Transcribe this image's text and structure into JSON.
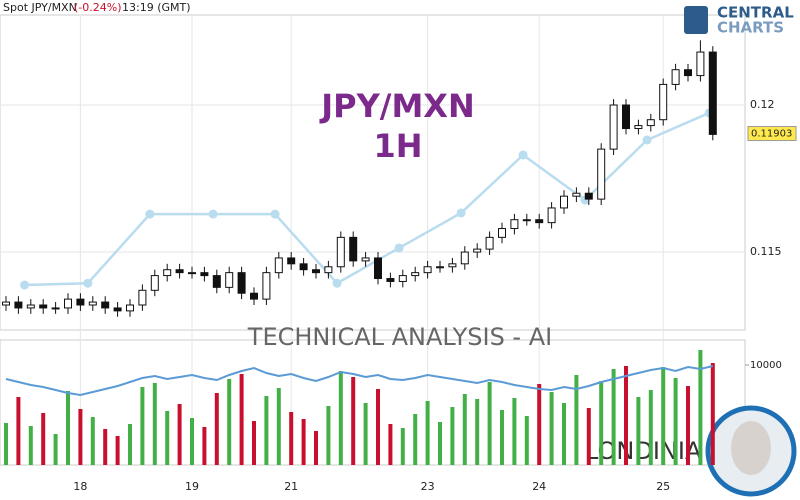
{
  "header": {
    "symbol": "Spot JPY/MXN",
    "change": "(-0.24%)",
    "time": "13:19 (GMT)"
  },
  "logo": {
    "line1": "CENTRAL",
    "line2": "CHARTS"
  },
  "footer": {
    "brand": "LONDINIA"
  },
  "chart_data": [
    {
      "type": "candlestick",
      "title": "JPY/MXN",
      "subtitle": "1H",
      "open": [
        0.1132,
        0.1133,
        0.1131,
        0.1132,
        0.1131,
        0.1131,
        0.1134,
        0.1132,
        0.1133,
        0.1131,
        0.113,
        0.1132,
        0.1137,
        0.1142,
        0.1144,
        0.1143,
        0.1143,
        0.1142,
        0.1138,
        0.1143,
        0.1136,
        0.1134,
        0.1143,
        0.1148,
        0.1146,
        0.1144,
        0.1143,
        0.1145,
        0.1155,
        0.1147,
        0.1148,
        0.1141,
        0.114,
        0.1142,
        0.1143,
        0.1145,
        0.1145,
        0.1146,
        0.115,
        0.1151,
        0.1155,
        0.1158,
        0.1161,
        0.1161,
        0.116,
        0.1165,
        0.1169,
        0.117,
        0.1168,
        0.1185,
        0.12,
        0.1192,
        0.1193,
        0.1195,
        0.1207,
        0.1212,
        0.121,
        0.1218
      ],
      "high": [
        0.1135,
        0.1135,
        0.1134,
        0.1134,
        0.1133,
        0.1136,
        0.1136,
        0.1135,
        0.1135,
        0.1133,
        0.1134,
        0.1139,
        0.1144,
        0.1146,
        0.1146,
        0.1145,
        0.1145,
        0.1144,
        0.1145,
        0.1145,
        0.1138,
        0.1145,
        0.115,
        0.115,
        0.1148,
        0.1146,
        0.1147,
        0.1157,
        0.1157,
        0.115,
        0.115,
        0.1143,
        0.1144,
        0.1145,
        0.1147,
        0.1147,
        0.1148,
        0.1152,
        0.1153,
        0.1157,
        0.116,
        0.1163,
        0.1163,
        0.1163,
        0.1167,
        0.1171,
        0.1172,
        0.1172,
        0.1187,
        0.1202,
        0.1202,
        0.1195,
        0.1197,
        0.1209,
        0.1214,
        0.1214,
        0.1222,
        0.122
      ],
      "low": [
        0.113,
        0.1129,
        0.1129,
        0.1129,
        0.1129,
        0.1129,
        0.113,
        0.113,
        0.1129,
        0.1128,
        0.1128,
        0.113,
        0.1135,
        0.114,
        0.1141,
        0.1141,
        0.114,
        0.1136,
        0.1136,
        0.1134,
        0.1132,
        0.1132,
        0.1141,
        0.1144,
        0.1142,
        0.1141,
        0.1141,
        0.1143,
        0.1145,
        0.1145,
        0.1139,
        0.1138,
        0.1138,
        0.114,
        0.1141,
        0.1143,
        0.1143,
        0.1144,
        0.1148,
        0.1149,
        0.1153,
        0.1156,
        0.1159,
        0.1158,
        0.1158,
        0.1163,
        0.1167,
        0.1166,
        0.1166,
        0.1183,
        0.119,
        0.119,
        0.1191,
        0.1193,
        0.1205,
        0.1208,
        0.1208,
        0.1188
      ],
      "close": [
        0.1133,
        0.1131,
        0.1132,
        0.1131,
        0.1131,
        0.1134,
        0.1132,
        0.1133,
        0.1131,
        0.113,
        0.1132,
        0.1137,
        0.1142,
        0.1144,
        0.1143,
        0.1143,
        0.1142,
        0.1138,
        0.1143,
        0.1136,
        0.1134,
        0.1143,
        0.1148,
        0.1146,
        0.1144,
        0.1143,
        0.1145,
        0.1155,
        0.1147,
        0.1148,
        0.1141,
        0.114,
        0.1142,
        0.1143,
        0.1145,
        0.1145,
        0.1146,
        0.115,
        0.1151,
        0.1155,
        0.1158,
        0.1161,
        0.1161,
        0.116,
        0.1165,
        0.1169,
        0.117,
        0.1168,
        0.1185,
        0.12,
        0.1192,
        0.1193,
        0.1195,
        0.1207,
        0.1212,
        0.121,
        0.1218,
        0.119
      ],
      "ylim": [
        0.11235,
        0.12306
      ],
      "yticks": [
        0.12,
        0.115
      ],
      "xticks": [
        {
          "value": 6,
          "label": "18"
        },
        {
          "value": 15,
          "label": "19"
        },
        {
          "value": 23,
          "label": "21"
        },
        {
          "value": 34,
          "label": "23"
        },
        {
          "value": 43,
          "label": "24"
        },
        {
          "value": 53,
          "label": "25"
        }
      ],
      "grid": true,
      "up_color": "#ffffff",
      "down_color": "#111111",
      "title_color": "#7b2a8c",
      "last_price": 0.11903,
      "last_price_color": "#ffe94d",
      "overlay": {
        "color": "#b9dcef",
        "x": [
          1.5,
          6.6,
          11.6,
          16.7,
          21.7,
          26.7,
          31.7,
          36.7,
          41.7,
          46.7,
          51.7,
          56.7
        ],
        "values": [
          0.11388,
          0.11394,
          0.11629,
          0.11629,
          0.11629,
          0.11394,
          0.11514,
          0.11633,
          0.1183,
          0.11677,
          0.11881,
          0.11973
        ]
      }
    },
    {
      "type": "volume",
      "title": "TECHNICAL  ANALYSIS - AI",
      "values": [
        4200,
        6800,
        3900,
        5200,
        3100,
        7400,
        5600,
        4800,
        3600,
        2900,
        4100,
        7800,
        8200,
        5400,
        6100,
        4700,
        3800,
        7200,
        8600,
        9100,
        4400,
        6900,
        7700,
        5300,
        4600,
        3400,
        5900,
        9400,
        8800,
        6200,
        7600,
        4100,
        3700,
        5100,
        6400,
        4300,
        5800,
        7100,
        6600,
        8300,
        5500,
        6700,
        4900,
        8100,
        7300,
        6200,
        9000,
        5700,
        8400,
        9600,
        9900,
        6800,
        7500,
        9800,
        8700,
        7900,
        11500,
        10200
      ],
      "line": [
        8600,
        8300,
        8000,
        7800,
        7500,
        7200,
        7000,
        7300,
        7600,
        7900,
        8300,
        8700,
        8900,
        8600,
        8800,
        9000,
        8700,
        8500,
        9000,
        9400,
        9700,
        9200,
        8900,
        9100,
        8700,
        8400,
        8800,
        9300,
        9100,
        8800,
        9000,
        8600,
        8500,
        8700,
        9000,
        8800,
        8600,
        8400,
        8200,
        8500,
        8300,
        8000,
        7800,
        7600,
        7500,
        7800,
        7600,
        7900,
        8300,
        8600,
        8900,
        9200,
        9500,
        9700,
        9400,
        9800,
        9600,
        9900
      ],
      "line_color": "#5b9bd5",
      "up_color": "#43b047",
      "down_color": "#c8102e",
      "ylim": [
        0,
        12500
      ],
      "yticks": [
        10000
      ]
    }
  ]
}
